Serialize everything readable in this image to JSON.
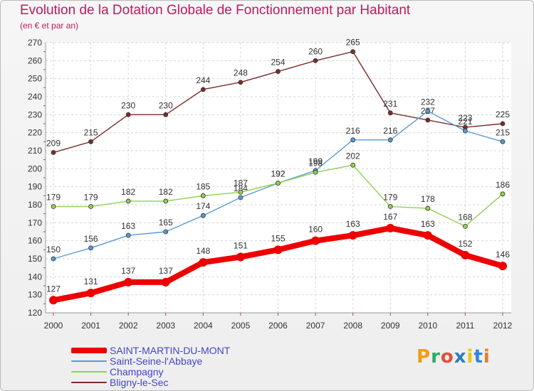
{
  "title": "Evolution de la Dotation Globale de Fonctionnement par Habitant",
  "subtitle": "(en € et par an)",
  "logo": {
    "text": "Proxiti",
    "letter_colors": [
      "#f39c12",
      "#27ae60",
      "#e74c3c",
      "#2980b9",
      "#f1c40f",
      "#2e86de",
      "#e67e22"
    ]
  },
  "chart_data": {
    "type": "line",
    "x": [
      "2000",
      "2001",
      "2002",
      "2003",
      "2004",
      "2005",
      "2006",
      "2007",
      "2008",
      "2009",
      "2010",
      "2011",
      "2012"
    ],
    "ylim": [
      120,
      270
    ],
    "yticks": [
      120,
      130,
      140,
      150,
      160,
      170,
      180,
      190,
      200,
      210,
      220,
      230,
      240,
      250,
      260,
      270
    ],
    "grid": true,
    "legend_position": "bottom-left",
    "series": [
      {
        "name": "Bligny-le-Sec",
        "color": "#7b2d2d",
        "values": [
          209,
          215,
          230,
          230,
          244,
          248,
          254,
          260,
          265,
          231,
          227,
          223,
          225
        ],
        "labels": [
          "209",
          "215",
          "230",
          "230",
          "244",
          "248",
          "254",
          "260",
          "265",
          "231",
          "227",
          "223",
          "225"
        ]
      },
      {
        "name": "Saint-Seine-l'Abbaye",
        "color": "#5b9bd5",
        "values": [
          150,
          156,
          163,
          165,
          174,
          184,
          192,
          199,
          216,
          216,
          232,
          221,
          215
        ],
        "labels": [
          "150",
          "156",
          "163",
          "165",
          "174",
          "184",
          "192",
          "199",
          "216",
          "216",
          "232",
          "221",
          "215"
        ]
      },
      {
        "name": "Champagny",
        "color": "#92d050",
        "values": [
          179,
          179,
          182,
          182,
          185,
          187,
          192,
          198,
          202,
          179,
          178,
          168,
          186
        ],
        "labels": [
          "179",
          "179",
          "182",
          "182",
          "185",
          "187",
          "192",
          "198",
          "202",
          "179",
          "178",
          "168",
          "186"
        ]
      },
      {
        "name": "SAINT-MARTIN-DU-MONT",
        "color": "#ee0000",
        "values": [
          127,
          131,
          137,
          137,
          148,
          151,
          155,
          160,
          163,
          167,
          163,
          152,
          146
        ],
        "labels": [
          "127",
          "131",
          "137",
          "137",
          "148",
          "151",
          "155",
          "160",
          "163",
          "167",
          "163",
          "152",
          "146"
        ]
      }
    ],
    "legend": [
      {
        "name": "SAINT-MARTIN-DU-MONT",
        "color": "#ee0000",
        "thick": true
      },
      {
        "name": "Saint-Seine-l'Abbaye",
        "color": "#5b9bd5",
        "thick": false
      },
      {
        "name": "Champagny",
        "color": "#92d050",
        "thick": false
      },
      {
        "name": "Bligny-le-Sec",
        "color": "#7b2d2d",
        "thick": false
      }
    ]
  }
}
